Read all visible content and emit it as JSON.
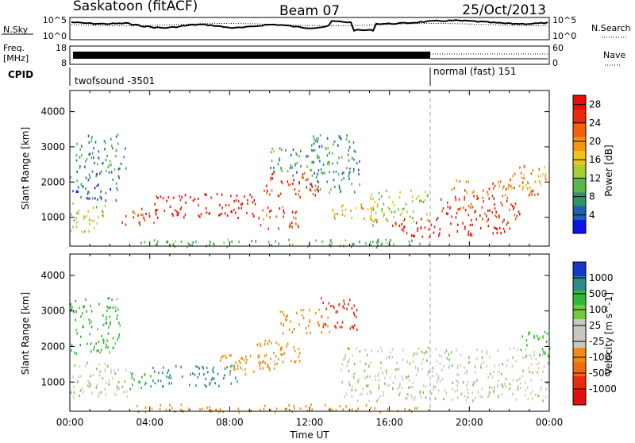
{
  "header": {
    "title": "Saskatoon (fitACF)",
    "beam": "Beam 07",
    "date": "25/Oct/2013"
  },
  "noise_panel": {
    "left_label": "N.Sky",
    "left_ticks": [
      "10^5",
      "10^0"
    ],
    "right_label": "N.Search",
    "right_ticks": [
      "10^5",
      "10^0"
    ]
  },
  "freq_panel": {
    "left_label_1": "Freq.",
    "left_label_2": "[MHz]",
    "left_ticks": [
      "18",
      "8"
    ],
    "right_label": "Nave",
    "right_ticks": [
      "60",
      "0"
    ]
  },
  "cpid_panel": {
    "label": "CPID",
    "segments": [
      {
        "text": "twofsound -3501",
        "start_hour": 0,
        "end_hour": 18
      },
      {
        "text": "normal (fast) 151",
        "start_hour": 18,
        "end_hour": 24
      }
    ]
  },
  "x_axis": {
    "label": "Time UT",
    "ticks": [
      "00:00",
      "04:00",
      "08:00",
      "12:00",
      "16:00",
      "20:00",
      "00:00"
    ]
  },
  "chart_data": [
    {
      "type": "heatmap",
      "quantity": "Power",
      "x_range_hours": [
        0,
        24
      ],
      "ylabel": "Slant Range [km]",
      "ylim": [
        180,
        4600
      ],
      "y_ticks": [
        1000,
        2000,
        3000,
        4000
      ],
      "colorbar": {
        "label": "Power [dB]",
        "ticks": [
          "4",
          "8",
          "12",
          "16",
          "20",
          "24",
          "28"
        ],
        "range": [
          0,
          30
        ],
        "colors": [
          "#0a14e6",
          "#1f5fb0",
          "#2e9368",
          "#59b84a",
          "#a8cc34",
          "#f0c21a",
          "#f59410",
          "#f2620a",
          "#ea2a0a",
          "#e60f0a"
        ]
      },
      "regions": [
        {
          "t": [
            0.0,
            1.8
          ],
          "r": [
            600,
            1450
          ],
          "value": 14
        },
        {
          "t": [
            0.0,
            2.5
          ],
          "r": [
            1500,
            2300
          ],
          "value": 6
        },
        {
          "t": [
            0.3,
            2.8
          ],
          "r": [
            2300,
            3400
          ],
          "value": 8
        },
        {
          "t": [
            2.5,
            3.5
          ],
          "r": [
            800,
            1200
          ],
          "value": 22
        },
        {
          "t": [
            3.3,
            4.5
          ],
          "r": [
            800,
            1300
          ],
          "value": 26
        },
        {
          "t": [
            4.2,
            9.5
          ],
          "r": [
            1000,
            1700
          ],
          "value": 28
        },
        {
          "t": [
            9.5,
            11.5
          ],
          "r": [
            700,
            1350
          ],
          "value": 24
        },
        {
          "t": [
            9.5,
            12.5
          ],
          "r": [
            1600,
            2300
          ],
          "value": 26
        },
        {
          "t": [
            10.0,
            13.0
          ],
          "r": [
            2300,
            3000
          ],
          "value": 9
        },
        {
          "t": [
            12.0,
            14.5
          ],
          "r": [
            1700,
            3400
          ],
          "value": 8
        },
        {
          "t": [
            13.0,
            15.5
          ],
          "r": [
            900,
            1400
          ],
          "value": 18
        },
        {
          "t": [
            15.0,
            18.0
          ],
          "r": [
            800,
            1800
          ],
          "value": 14
        },
        {
          "t": [
            16.0,
            18.0
          ],
          "r": [
            450,
            1000
          ],
          "value": 27
        },
        {
          "t": [
            18.0,
            22.0
          ],
          "r": [
            500,
            900
          ],
          "value": 29
        },
        {
          "t": [
            18.0,
            22.5
          ],
          "r": [
            900,
            1600
          ],
          "value": 26
        },
        {
          "t": [
            19.0,
            23.5
          ],
          "r": [
            1600,
            2100
          ],
          "value": 22
        },
        {
          "t": [
            22.0,
            24.0
          ],
          "r": [
            1800,
            2500
          ],
          "value": 20
        },
        {
          "t": [
            3.0,
            17.5
          ],
          "r": [
            180,
            400
          ],
          "value": 10
        }
      ]
    },
    {
      "type": "heatmap",
      "quantity": "Velocity",
      "x_range_hours": [
        0,
        24
      ],
      "ylabel": "Slant Range [km]",
      "ylim": [
        180,
        4600
      ],
      "y_ticks": [
        1000,
        2000,
        3000,
        4000
      ],
      "colorbar": {
        "label": "Velocity [m s^-1]",
        "ticks": [
          "1000",
          "500",
          "100",
          "25",
          "-25",
          "-100",
          "-500",
          "-1000"
        ],
        "colors": [
          "#1935cc",
          "#2d8a8a",
          "#2db839",
          "#70c83a",
          "#c8c8c0",
          "#c8c8c0",
          "#f08c10",
          "#f56810",
          "#ea2a0a",
          "#e01010"
        ]
      },
      "regions": [
        {
          "t": [
            0.0,
            3.0
          ],
          "r": [
            600,
            1600
          ],
          "value": 0
        },
        {
          "t": [
            0.0,
            2.5
          ],
          "r": [
            1800,
            3400
          ],
          "value": 150
        },
        {
          "t": [
            3.0,
            4.5
          ],
          "r": [
            800,
            1300
          ],
          "value": 300
        },
        {
          "t": [
            4.0,
            8.5
          ],
          "r": [
            900,
            1500
          ],
          "value": 600
        },
        {
          "t": [
            7.5,
            10.5
          ],
          "r": [
            1200,
            1800
          ],
          "value": -150
        },
        {
          "t": [
            9.0,
            11.5
          ],
          "r": [
            1400,
            2200
          ],
          "value": -300
        },
        {
          "t": [
            10.5,
            13.0
          ],
          "r": [
            2400,
            3100
          ],
          "value": -200
        },
        {
          "t": [
            12.5,
            14.5
          ],
          "r": [
            2500,
            3400
          ],
          "value": -600
        },
        {
          "t": [
            13.5,
            24.0
          ],
          "r": [
            500,
            2000
          ],
          "value": 0
        },
        {
          "t": [
            22.5,
            24.0
          ],
          "r": [
            1800,
            2500
          ],
          "value": 150
        },
        {
          "t": [
            3.0,
            17.5
          ],
          "r": [
            180,
            400
          ],
          "value": -200
        }
      ]
    }
  ]
}
